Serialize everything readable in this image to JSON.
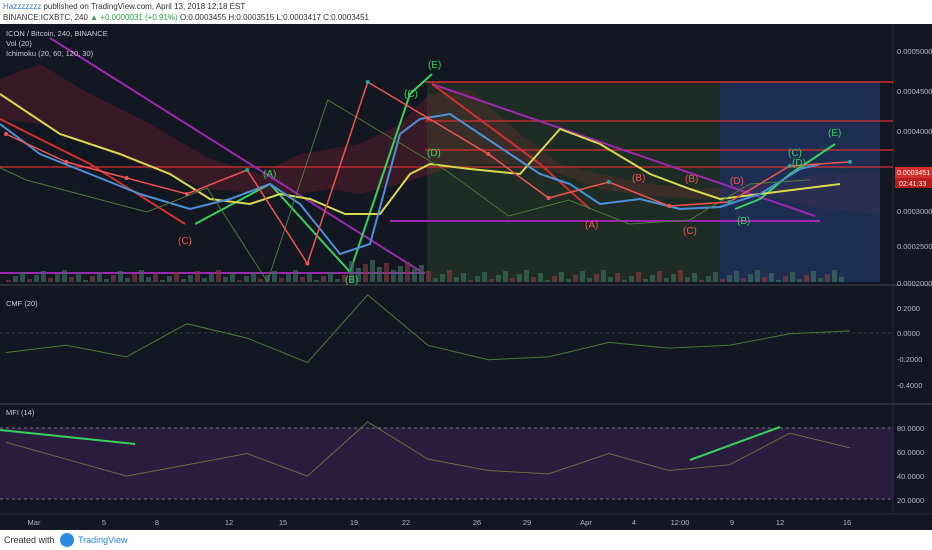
{
  "header": {
    "author": "Hazzzzzzz",
    "published": " published on TradingView.com, April 13, 2018 12:18 EST",
    "symbol_line": "BINANCE:ICXBTC, 240",
    "change": "▲ +0.0000031 (+0.91%)",
    "ohlc": "O:0.0003455 H:0.0003515 L:0.0003417 C:0.0003451"
  },
  "legend": {
    "pair": "ICON / Bitcoin, 240, BINANCE",
    "vol": "Vol (20)",
    "ichimoku": "Ichimoku (20, 60, 120, 30)"
  },
  "price_axis": {
    "labels": [
      "0.0005000",
      "0.00045000",
      "0.0004000",
      "0.0003451",
      "02:41:33",
      "0.00030000",
      "0.00025000",
      "0.00020000"
    ],
    "last_price": "0.0003451",
    "countdown": "02:41:33"
  },
  "cmf_panel": {
    "label": "CMF (20)",
    "axis": [
      "0.2000",
      "0.0000",
      "-0.2000",
      "-0.4000"
    ]
  },
  "mfi_panel": {
    "label": "MFI (14)",
    "axis": [
      "80.0000",
      "60.0000",
      "40.0000",
      "20.0000"
    ]
  },
  "time_axis": [
    "Mar",
    "5",
    "8",
    "12",
    "15",
    "19",
    "22",
    "26",
    "29",
    "Apr",
    "4",
    "12:00",
    "9",
    "12",
    "16"
  ],
  "wave_labels": [
    "(C)",
    "(A)",
    "(B)",
    "(C)",
    "(D)",
    "(E)",
    "(A)",
    "(B)",
    "(C)",
    "(B)",
    "(D)",
    "(C)",
    "(E)",
    "(B)",
    "(D)"
  ],
  "colors": {
    "background": "#131722",
    "bull": "#26a69a",
    "bear": "#ef5350",
    "conversion": "#4a90d9",
    "base": "#d9d94c",
    "lagging": "#4c7a3a",
    "triangle": "#9c27b0",
    "wave_green": "#34d15c",
    "red_line": "#d32f2f"
  },
  "chart_data": {
    "type": "line",
    "series": [
      {
        "name": "ICXBTC",
        "x": [
          "Mar 1",
          "Mar 5",
          "Mar 8",
          "Mar 12",
          "Mar 15",
          "Mar 19",
          "Mar 22",
          "Mar 26",
          "Mar 29",
          "Apr 1",
          "Apr 4",
          "Apr 7",
          "Apr 9",
          "Apr 12",
          "Apr 13"
        ],
        "values": [
          0.00038,
          0.000345,
          0.000325,
          0.000305,
          0.000335,
          0.000218,
          0.000445,
          0.0004,
          0.000355,
          0.0003,
          0.00032,
          0.00029,
          0.000295,
          0.00034,
          0.0003451
        ]
      }
    ],
    "ylim": [
      0.000195,
      0.00051
    ],
    "cmf": {
      "x": [
        "Mar 1",
        "Mar 5",
        "Mar 8",
        "Mar 12",
        "Mar 15",
        "Mar 19",
        "Mar 22",
        "Mar 26",
        "Mar 29",
        "Apr 1",
        "Apr 4",
        "Apr 7",
        "Apr 9",
        "Apr 12",
        "Apr 13"
      ],
      "values": [
        -0.15,
        -0.1,
        -0.18,
        0.05,
        -0.05,
        -0.22,
        0.25,
        -0.1,
        -0.2,
        -0.18,
        -0.08,
        -0.12,
        -0.1,
        -0.02,
        0.0
      ],
      "ylim": [
        -0.48,
        0.18
      ]
    },
    "mfi": {
      "x": [
        "Mar 1",
        "Mar 5",
        "Mar 8",
        "Mar 12",
        "Mar 15",
        "Mar 19",
        "Mar 22",
        "Mar 26",
        "Mar 29",
        "Apr 1",
        "Apr 4",
        "Apr 7",
        "Apr 9",
        "Apr 12",
        "Apr 13"
      ],
      "values": [
        70,
        55,
        40,
        50,
        60,
        40,
        88,
        55,
        45,
        42,
        60,
        45,
        50,
        78,
        65
      ],
      "ylim": [
        10,
        95
      ]
    }
  }
}
